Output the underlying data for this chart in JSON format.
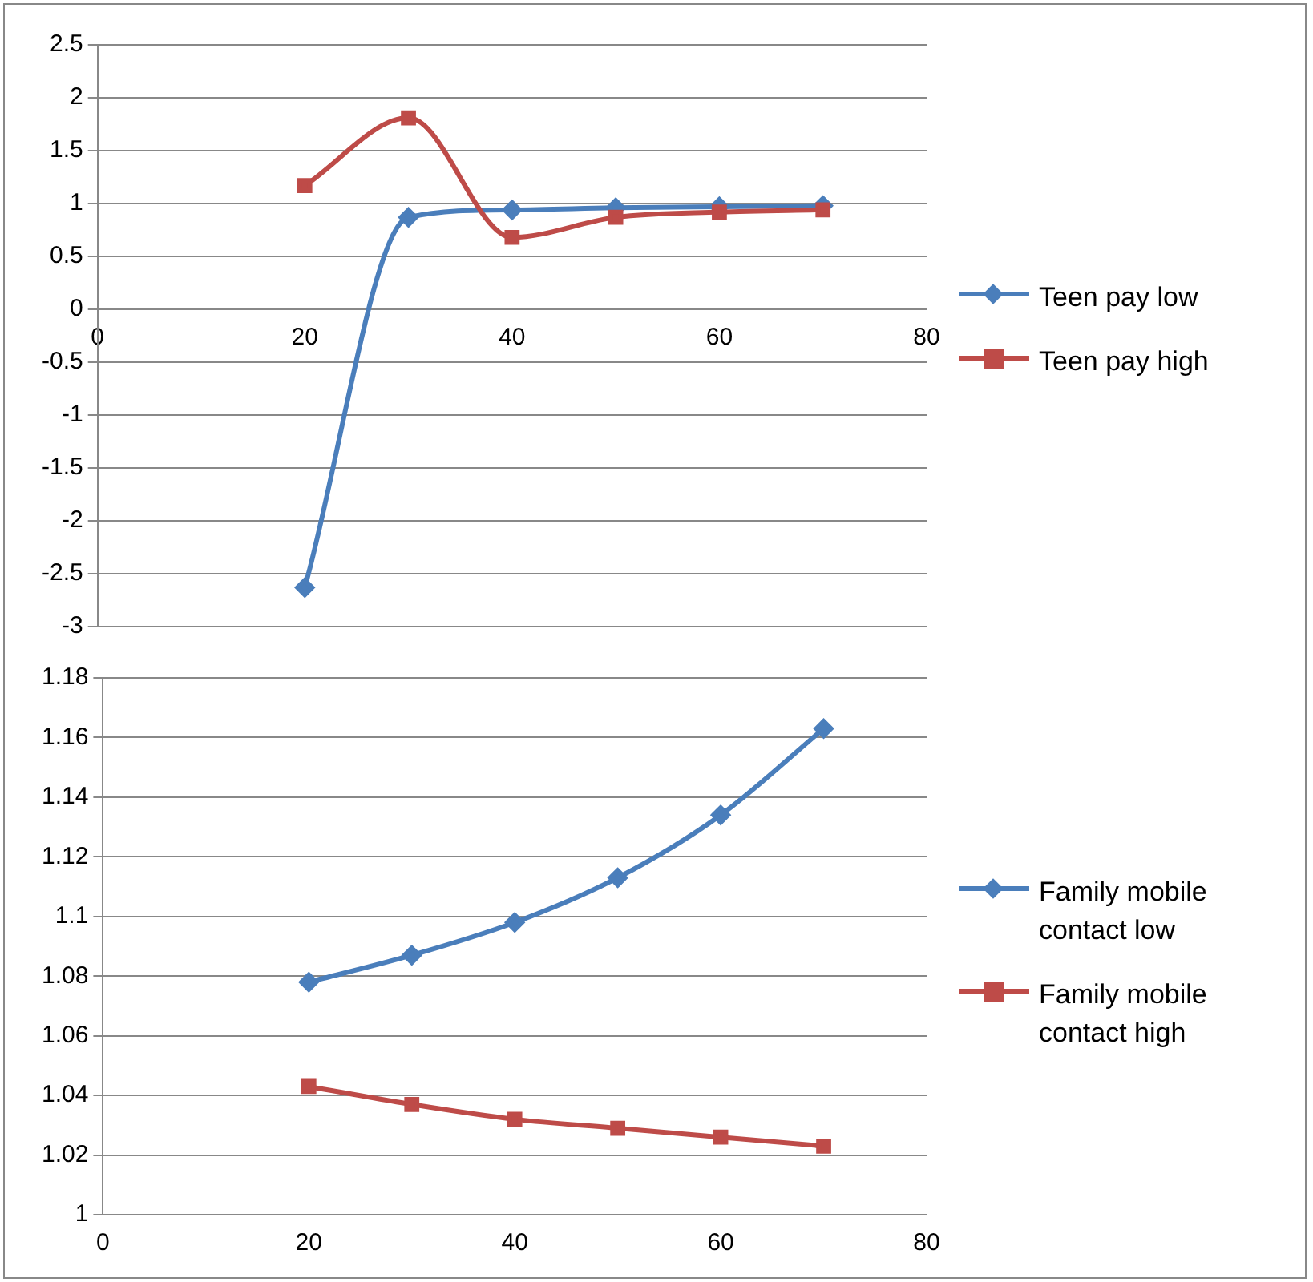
{
  "chart_data": [
    {
      "type": "line",
      "x": [
        20,
        30,
        40,
        50,
        60,
        70
      ],
      "xlim": [
        0,
        80
      ],
      "xticks": [
        0,
        20,
        40,
        60,
        80
      ],
      "ylim": [
        -3,
        2.5
      ],
      "yticks": [
        -3,
        -2.5,
        -2,
        -1.5,
        -1,
        -0.5,
        0,
        0.5,
        1,
        1.5,
        2,
        2.5
      ],
      "grid": "y",
      "legend": "right",
      "line_style": "solid",
      "series": [
        {
          "name": "Teen pay low",
          "color": "#4a7ebb",
          "marker": "diamond",
          "values": [
            -2.63,
            0.87,
            0.94,
            0.96,
            0.97,
            0.98
          ]
        },
        {
          "name": "Teen pay high",
          "color": "#be4b48",
          "marker": "square",
          "values": [
            1.17,
            1.81,
            0.68,
            0.87,
            0.92,
            0.94
          ]
        }
      ]
    },
    {
      "type": "line",
      "x": [
        20,
        30,
        40,
        50,
        60,
        70
      ],
      "xlim": [
        0,
        80
      ],
      "xticks": [
        0,
        20,
        40,
        60,
        80
      ],
      "ylim": [
        1,
        1.18
      ],
      "yticks": [
        1,
        1.02,
        1.04,
        1.06,
        1.08,
        1.1,
        1.12,
        1.14,
        1.16,
        1.18
      ],
      "grid": "y",
      "legend": "right",
      "line_style": "solid",
      "series": [
        {
          "name": "Family mobile contact low",
          "color": "#4a7ebb",
          "marker": "diamond",
          "values": [
            1.078,
            1.087,
            1.098,
            1.113,
            1.134,
            1.163
          ]
        },
        {
          "name": "Family mobile contact high",
          "color": "#be4b48",
          "marker": "square",
          "values": [
            1.043,
            1.037,
            1.032,
            1.029,
            1.026,
            1.023
          ]
        }
      ]
    }
  ]
}
